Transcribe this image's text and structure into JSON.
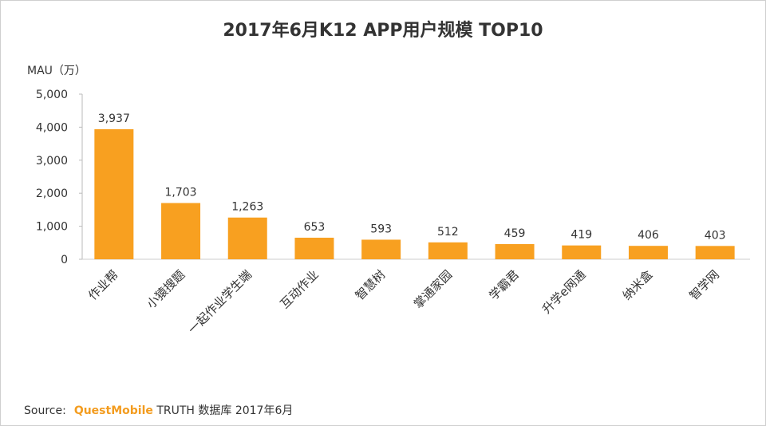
{
  "chart_data": {
    "type": "bar",
    "title": "2017年6月K12 APP用户规模 TOP10",
    "ylabel": "MAU（万）",
    "xlabel": "",
    "ylim": [
      0,
      5000
    ],
    "yticks": [
      0,
      1000,
      2000,
      3000,
      4000,
      5000
    ],
    "ytick_labels": [
      "0",
      "1,000",
      "2,000",
      "3,000",
      "4,000",
      "5,000"
    ],
    "categories": [
      "作业帮",
      "小猿搜题",
      "一起作业学生端",
      "互动作业",
      "智慧树",
      "掌通家园",
      "学霸君",
      "升学e网通",
      "纳米盒",
      "智学网"
    ],
    "values": [
      3937,
      1703,
      1263,
      653,
      593,
      512,
      459,
      419,
      406,
      403
    ],
    "data_labels": [
      "3,937",
      "1,703",
      "1,263",
      "653",
      "593",
      "512",
      "459",
      "419",
      "406",
      "403"
    ],
    "bar_color": "#f8a020",
    "grid": false
  },
  "source": {
    "prefix": "Source:",
    "brand": "QuestMobile",
    "rest": "TRUTH 数据库 2017年6月"
  }
}
